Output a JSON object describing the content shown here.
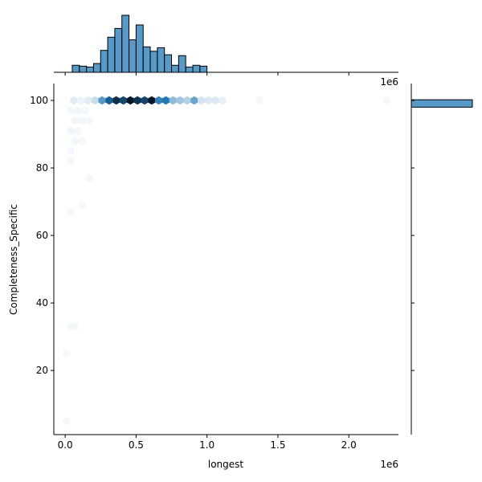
{
  "chart_data": {
    "type": "jointplot-hexbin",
    "xlabel": "longest",
    "ylabel": "Completeness_Specific",
    "x_offset_label": "1e6",
    "top_offset_label": "1e6",
    "xlim": [
      -0.08,
      2.35
    ],
    "ylim": [
      1,
      105
    ],
    "x_ticks": [
      {
        "value": 0.0,
        "label": "0.0"
      },
      {
        "value": 0.5,
        "label": "0.5"
      },
      {
        "value": 1.0,
        "label": "1.0"
      },
      {
        "value": 1.5,
        "label": "1.5"
      },
      {
        "value": 2.0,
        "label": "2.0"
      }
    ],
    "y_ticks": [
      {
        "value": 20,
        "label": "20"
      },
      {
        "value": 40,
        "label": "40"
      },
      {
        "value": 60,
        "label": "60"
      },
      {
        "value": 80,
        "label": "80"
      },
      {
        "value": 100,
        "label": "100"
      }
    ],
    "hex_color": "#1f77b4",
    "hex_series": [
      {
        "x": 0.06,
        "y": 100,
        "v": 0.08
      },
      {
        "x": 0.11,
        "y": 100,
        "v": 0.05
      },
      {
        "x": 0.16,
        "y": 100,
        "v": 0.08
      },
      {
        "x": 0.21,
        "y": 100,
        "v": 0.15
      },
      {
        "x": 0.26,
        "y": 100,
        "v": 0.45
      },
      {
        "x": 0.31,
        "y": 100,
        "v": 0.7
      },
      {
        "x": 0.36,
        "y": 100,
        "v": 0.9
      },
      {
        "x": 0.41,
        "y": 100,
        "v": 0.8
      },
      {
        "x": 0.46,
        "y": 100,
        "v": 1.0
      },
      {
        "x": 0.51,
        "y": 100,
        "v": 0.88
      },
      {
        "x": 0.56,
        "y": 100,
        "v": 0.8
      },
      {
        "x": 0.61,
        "y": 100,
        "v": 1.0
      },
      {
        "x": 0.66,
        "y": 100,
        "v": 0.55
      },
      {
        "x": 0.71,
        "y": 100,
        "v": 0.6
      },
      {
        "x": 0.76,
        "y": 100,
        "v": 0.3
      },
      {
        "x": 0.81,
        "y": 100,
        "v": 0.25
      },
      {
        "x": 0.86,
        "y": 100,
        "v": 0.2
      },
      {
        "x": 0.91,
        "y": 100,
        "v": 0.4
      },
      {
        "x": 0.96,
        "y": 100,
        "v": 0.12
      },
      {
        "x": 1.01,
        "y": 100,
        "v": 0.1
      },
      {
        "x": 1.06,
        "y": 100,
        "v": 0.1
      },
      {
        "x": 1.11,
        "y": 100,
        "v": 0.06
      },
      {
        "x": 1.37,
        "y": 100,
        "v": 0.03
      },
      {
        "x": 2.27,
        "y": 100,
        "v": 0.03
      },
      {
        "x": 0.04,
        "y": 97,
        "v": 0.04
      },
      {
        "x": 0.09,
        "y": 97,
        "v": 0.04
      },
      {
        "x": 0.14,
        "y": 97,
        "v": 0.03
      },
      {
        "x": 0.07,
        "y": 94,
        "v": 0.04
      },
      {
        "x": 0.12,
        "y": 94,
        "v": 0.04
      },
      {
        "x": 0.17,
        "y": 94,
        "v": 0.03
      },
      {
        "x": 0.04,
        "y": 91,
        "v": 0.04
      },
      {
        "x": 0.09,
        "y": 91,
        "v": 0.03
      },
      {
        "x": 0.07,
        "y": 88,
        "v": 0.04
      },
      {
        "x": 0.12,
        "y": 88,
        "v": 0.03
      },
      {
        "x": 0.04,
        "y": 85,
        "v": 0.03
      },
      {
        "x": 0.04,
        "y": 82,
        "v": 0.03
      },
      {
        "x": 0.17,
        "y": 77,
        "v": 0.03
      },
      {
        "x": 0.04,
        "y": 67,
        "v": 0.03
      },
      {
        "x": 0.12,
        "y": 69,
        "v": 0.03
      },
      {
        "x": 0.04,
        "y": 33,
        "v": 0.03
      },
      {
        "x": 0.07,
        "y": 33,
        "v": 0.03
      },
      {
        "x": 0.01,
        "y": 25,
        "v": 0.03
      },
      {
        "x": 0.01,
        "y": 5,
        "v": 0.03
      }
    ],
    "top_hist": {
      "bin_width": 0.05,
      "bins": [
        {
          "x": 0.05,
          "count": 8
        },
        {
          "x": 0.1,
          "count": 7
        },
        {
          "x": 0.15,
          "count": 6
        },
        {
          "x": 0.2,
          "count": 10
        },
        {
          "x": 0.25,
          "count": 25
        },
        {
          "x": 0.3,
          "count": 40
        },
        {
          "x": 0.35,
          "count": 50
        },
        {
          "x": 0.4,
          "count": 65
        },
        {
          "x": 0.45,
          "count": 37
        },
        {
          "x": 0.5,
          "count": 54
        },
        {
          "x": 0.55,
          "count": 29
        },
        {
          "x": 0.6,
          "count": 24
        },
        {
          "x": 0.65,
          "count": 28
        },
        {
          "x": 0.7,
          "count": 20
        },
        {
          "x": 0.75,
          "count": 8
        },
        {
          "x": 0.8,
          "count": 19
        },
        {
          "x": 0.85,
          "count": 6
        },
        {
          "x": 0.9,
          "count": 8
        },
        {
          "x": 0.95,
          "count": 7
        }
      ]
    },
    "right_hist": {
      "bins": [
        {
          "y0": 98,
          "y1": 100.2,
          "count": 1
        }
      ]
    },
    "grid": false
  }
}
